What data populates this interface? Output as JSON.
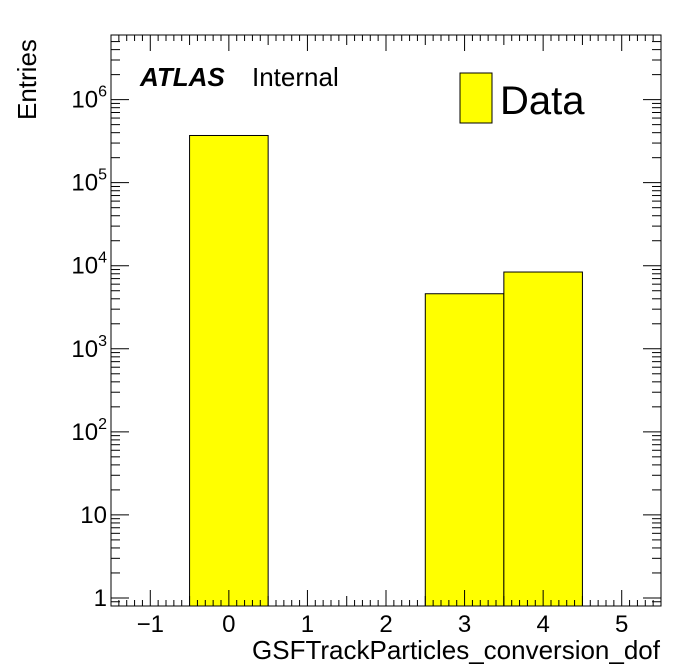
{
  "chart_data": {
    "type": "bar",
    "xlabel": "GSFTrackParticles_conversion_dof",
    "ylabel": "Entries",
    "xlim": [
      -1.5,
      5.5
    ],
    "ylim": [
      0.8,
      6000000
    ],
    "yscale": "log",
    "bins": [
      {
        "low": -0.5,
        "high": 0.5,
        "value": 370000
      },
      {
        "low": 0.5,
        "high": 1.5,
        "value": 0
      },
      {
        "low": 1.5,
        "high": 2.5,
        "value": 0
      },
      {
        "low": 2.5,
        "high": 3.5,
        "value": 4600
      },
      {
        "low": 3.5,
        "high": 4.5,
        "value": 8400
      }
    ],
    "x_ticks": [
      {
        "value": -1,
        "label": "−1"
      },
      {
        "value": 0,
        "label": "0"
      },
      {
        "value": 1,
        "label": "1"
      },
      {
        "value": 2,
        "label": "2"
      },
      {
        "value": 3,
        "label": "3"
      },
      {
        "value": 4,
        "label": "4"
      },
      {
        "value": 5,
        "label": "5"
      }
    ],
    "y_ticks": [
      {
        "value": 1,
        "base": "1",
        "exp": ""
      },
      {
        "value": 10,
        "base": "10",
        "exp": ""
      },
      {
        "value": 100,
        "base": "10",
        "exp": "2"
      },
      {
        "value": 1000,
        "base": "10",
        "exp": "3"
      },
      {
        "value": 10000,
        "base": "10",
        "exp": "4"
      },
      {
        "value": 100000,
        "base": "10",
        "exp": "5"
      },
      {
        "value": 1000000,
        "base": "10",
        "exp": "6"
      }
    ],
    "legend": {
      "entries": [
        {
          "name": "Data",
          "color": "#ffff00"
        }
      ],
      "position": "top-right"
    },
    "annotations": {
      "experiment": "ATLAS",
      "status": "Internal"
    },
    "fill_color": "#ffff00",
    "edge_color": "#000000"
  }
}
